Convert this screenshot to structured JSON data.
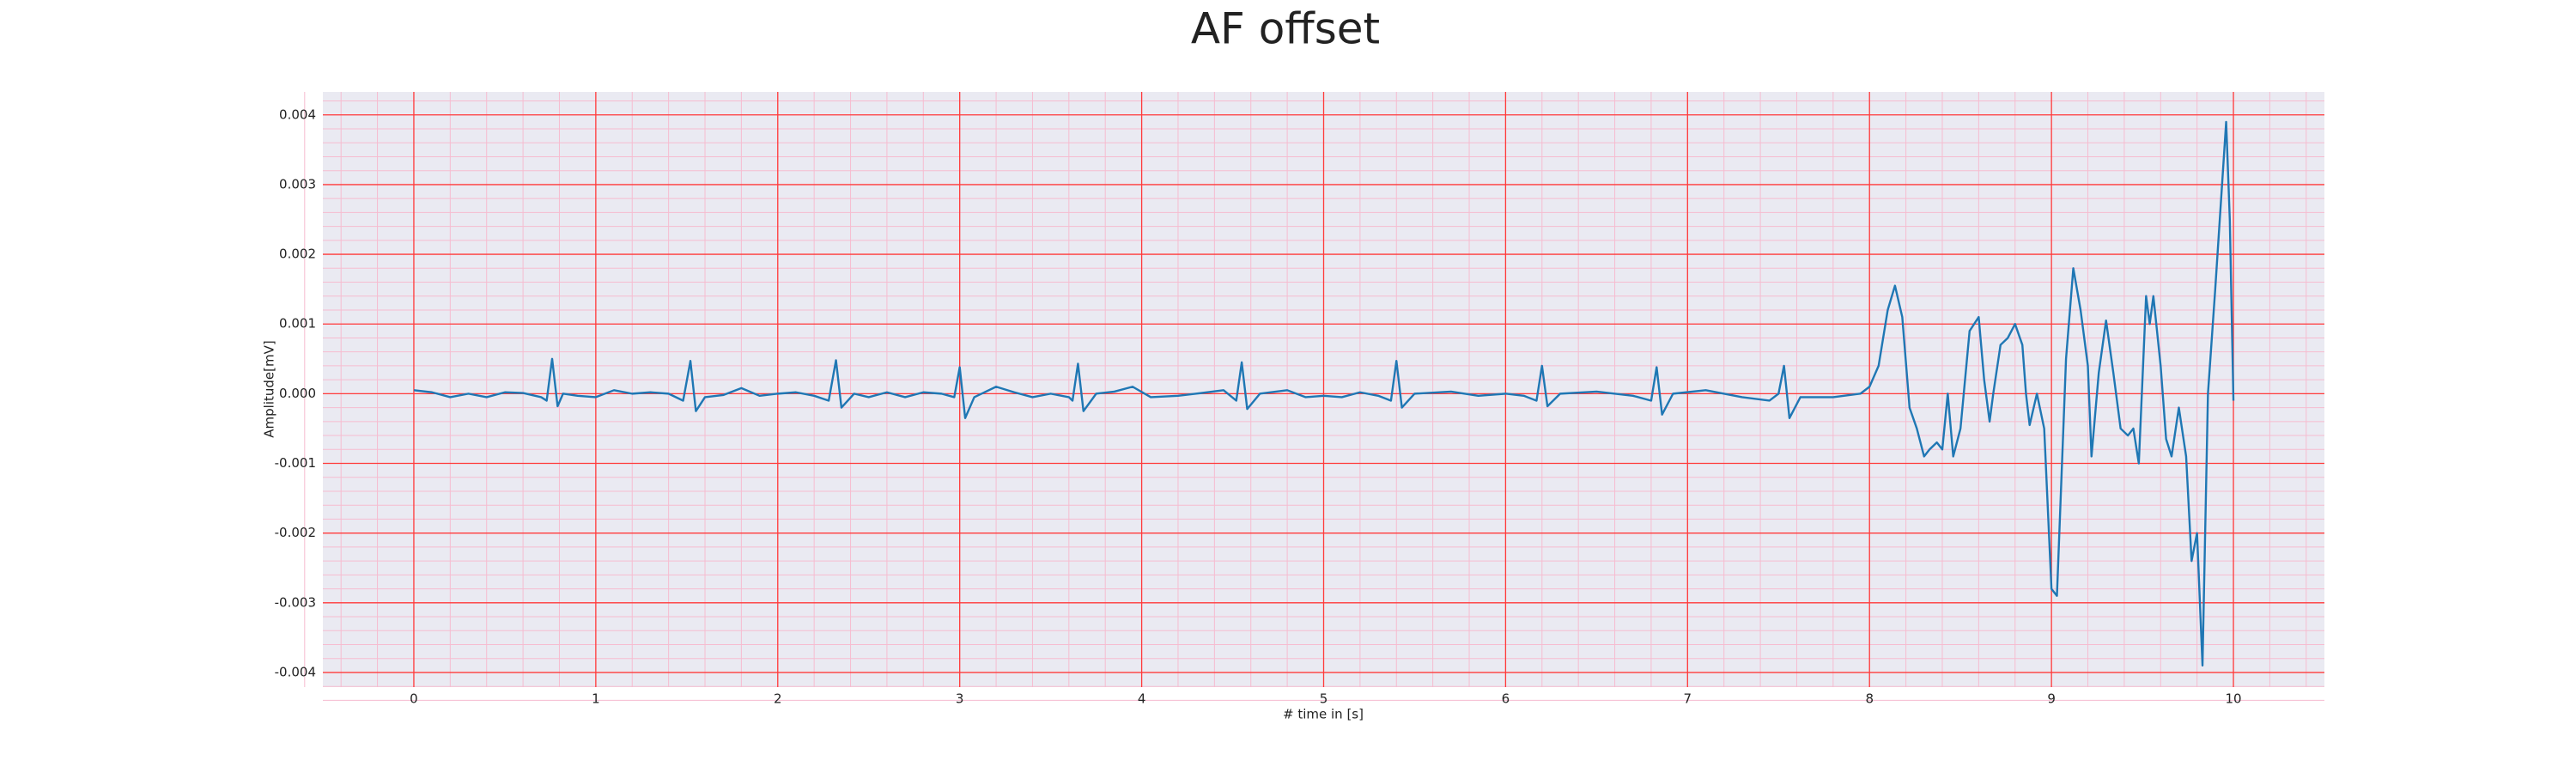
{
  "chart_data": {
    "type": "line",
    "title": "AF offset",
    "xlabel": "# time in [s]",
    "ylabel": "Amplitude[mV]",
    "xlim": [
      -0.5,
      10.5
    ],
    "ylim": [
      -0.00421,
      0.00433
    ],
    "xticks": [
      0,
      1,
      2,
      3,
      4,
      5,
      6,
      7,
      8,
      9,
      10
    ],
    "yticks": [
      -0.004,
      -0.003,
      -0.002,
      -0.001,
      {
        "value": 0,
        "label": "0.000"
      },
      0.001,
      0.002,
      0.003,
      0.004
    ],
    "grid": true,
    "minor_divisions": 5,
    "background": "#eaeaf2",
    "grid_color": "#ff3b3b",
    "minor_grid_color": "#f6bcd0",
    "x": [
      0,
      0.1,
      0.2,
      0.3,
      0.4,
      0.5,
      0.6,
      0.7,
      0.73,
      0.76,
      0.79,
      0.82,
      0.9,
      1.0,
      1.1,
      1.2,
      1.3,
      1.4,
      1.48,
      1.52,
      1.55,
      1.6,
      1.7,
      1.8,
      1.9,
      2.0,
      2.1,
      2.2,
      2.28,
      2.32,
      2.35,
      2.42,
      2.5,
      2.6,
      2.7,
      2.8,
      2.9,
      2.97,
      3.0,
      3.03,
      3.08,
      3.2,
      3.3,
      3.4,
      3.5,
      3.6,
      3.62,
      3.65,
      3.68,
      3.75,
      3.85,
      3.95,
      4.05,
      4.2,
      4.3,
      4.45,
      4.52,
      4.55,
      4.58,
      4.65,
      4.8,
      4.9,
      5.0,
      5.1,
      5.2,
      5.3,
      5.37,
      5.4,
      5.43,
      5.5,
      5.7,
      5.85,
      6.0,
      6.1,
      6.17,
      6.2,
      6.23,
      6.3,
      6.5,
      6.7,
      6.8,
      6.83,
      6.86,
      6.92,
      7.1,
      7.3,
      7.45,
      7.5,
      7.53,
      7.56,
      7.62,
      7.8,
      7.95,
      8.0,
      8.05,
      8.1,
      8.14,
      8.18,
      8.22,
      8.26,
      8.3,
      8.33,
      8.37,
      8.4,
      8.43,
      8.46,
      8.5,
      8.55,
      8.6,
      8.63,
      8.66,
      8.68,
      8.72,
      8.76,
      8.8,
      8.84,
      8.86,
      8.88,
      8.92,
      8.96,
      9.0,
      9.03,
      9.08,
      9.12,
      9.16,
      9.2,
      9.22,
      9.26,
      9.3,
      9.34,
      9.38,
      9.42,
      9.45,
      9.48,
      9.52,
      9.54,
      9.56,
      9.6,
      9.63,
      9.66,
      9.7,
      9.74,
      9.77,
      9.8,
      9.83,
      9.86,
      9.9,
      9.93,
      9.96,
      9.98,
      10.0
    ],
    "series": [
      {
        "color": "#1f77b4",
        "values": [
          5e-05,
          2e-05,
          -5e-05,
          0.0,
          -5e-05,
          2e-05,
          1e-05,
          -5e-05,
          -0.0001,
          0.0005,
          -0.00018,
          0.0,
          -3e-05,
          -5e-05,
          5e-05,
          0.0,
          2e-05,
          0.0,
          -0.0001,
          0.00047,
          -0.00025,
          -5e-05,
          -2e-05,
          8e-05,
          -3e-05,
          0.0,
          2e-05,
          -3e-05,
          -0.0001,
          0.00048,
          -0.0002,
          0.0,
          -5e-05,
          2e-05,
          -5e-05,
          2e-05,
          0.0,
          -5e-05,
          0.00038,
          -0.00035,
          -5e-05,
          0.0001,
          2e-05,
          -5e-05,
          0.0,
          -5e-05,
          -0.0001,
          0.00043,
          -0.00025,
          0.0,
          3e-05,
          0.0001,
          -5e-05,
          -3e-05,
          0.0,
          5e-05,
          -0.0001,
          0.00045,
          -0.00022,
          0.0,
          5e-05,
          -5e-05,
          -3e-05,
          -5e-05,
          2e-05,
          -3e-05,
          -0.0001,
          0.00047,
          -0.0002,
          0.0,
          3e-05,
          -3e-05,
          0.0,
          -3e-05,
          -0.0001,
          0.0004,
          -0.00018,
          0.0,
          3e-05,
          -3e-05,
          -0.0001,
          0.00038,
          -0.0003,
          0.0,
          5e-05,
          -5e-05,
          -0.0001,
          0.0,
          0.0004,
          -0.00035,
          -5e-05,
          -5e-05,
          0.0,
          0.0001,
          0.0004,
          0.0012,
          0.00155,
          0.0011,
          -0.0002,
          -0.0005,
          -0.0009,
          -0.0008,
          -0.0007,
          -0.0008,
          0.0,
          -0.0009,
          -0.0005,
          0.0009,
          0.0011,
          0.0002,
          -0.0004,
          0.0,
          0.0007,
          0.0008,
          0.001,
          0.0007,
          0.0,
          -0.00045,
          0.0,
          -0.0005,
          -0.0028,
          -0.0029,
          0.0005,
          0.0018,
          0.0012,
          0.0004,
          -0.0009,
          0.0003,
          0.00105,
          0.0003,
          -0.0005,
          -0.0006,
          -0.0005,
          -0.001,
          0.0014,
          0.001,
          0.0014,
          0.0004,
          -0.00065,
          -0.0009,
          -0.0002,
          -0.0009,
          -0.0024,
          -0.002,
          -0.0039,
          0.0,
          0.0015,
          0.0027,
          0.0039,
          0.0025,
          -0.0001
        ]
      }
    ]
  }
}
